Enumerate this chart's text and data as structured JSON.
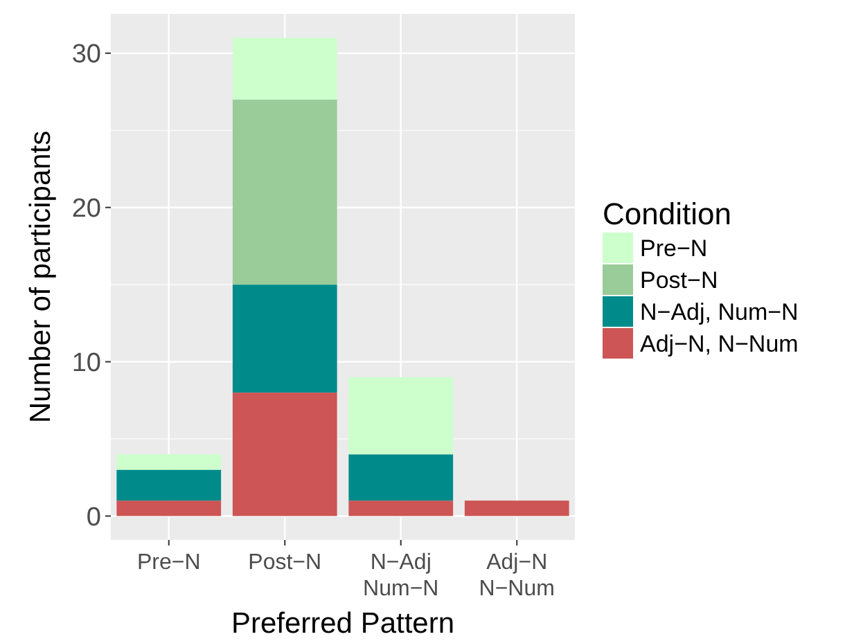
{
  "chart_data": {
    "type": "bar",
    "stacked": true,
    "xlabel": "Preferred Pattern",
    "ylabel": "Number of participants",
    "legend_title": "Condition",
    "categories": [
      "Pre−N",
      "Post−N",
      "N−Adj\nNum−N",
      "Adj−N\nN−Num"
    ],
    "series": [
      {
        "name": "Adj−N, N−Num",
        "color": "#cd5555",
        "values": [
          1,
          8,
          1,
          1
        ]
      },
      {
        "name": "N−Adj, Num−N",
        "color": "#008b8b",
        "values": [
          2,
          7,
          3,
          0
        ]
      },
      {
        "name": "Post−N",
        "color": "#99cc99",
        "values": [
          0,
          12,
          0,
          0
        ]
      },
      {
        "name": "Pre−N",
        "color": "#ccffcc",
        "values": [
          1,
          4,
          5,
          0
        ]
      }
    ],
    "ylim": [
      -1.55,
      32.55
    ],
    "yticks": [
      0,
      {
        "value": 5,
        "label": null
      },
      10,
      {
        "value": 15,
        "label": null
      },
      20,
      {
        "value": 25,
        "label": null
      },
      30
    ],
    "grid": true,
    "legend": "right"
  }
}
